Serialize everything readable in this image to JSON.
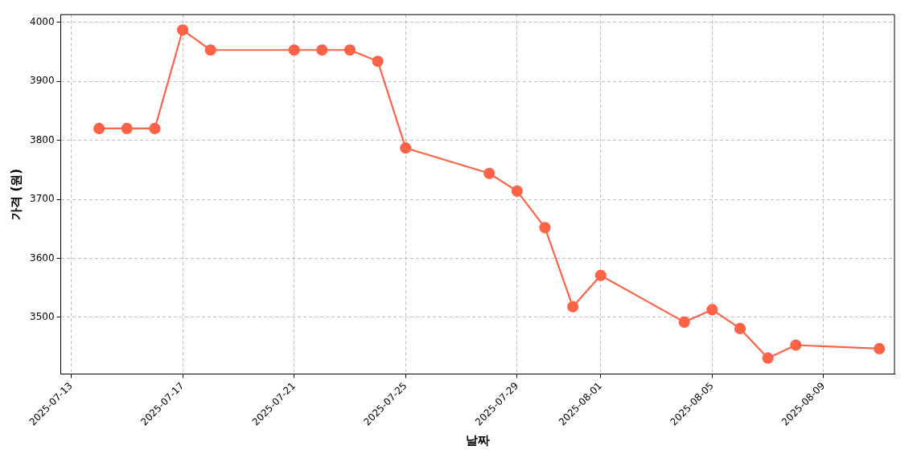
{
  "chart_data": {
    "type": "line",
    "xlabel": "날짜",
    "ylabel": "가격 (원)",
    "x": [
      "2025-07-14",
      "2025-07-15",
      "2025-07-16",
      "2025-07-17",
      "2025-07-18",
      "2025-07-21",
      "2025-07-22",
      "2025-07-23",
      "2025-07-24",
      "2025-07-25",
      "2025-07-28",
      "2025-07-29",
      "2025-07-30",
      "2025-07-31",
      "2025-08-01",
      "2025-08-04",
      "2025-08-05",
      "2025-08-06",
      "2025-08-07",
      "2025-08-08",
      "2025-08-11"
    ],
    "series": [
      {
        "color": "#ff6347",
        "values": [
          3820,
          3820,
          3820,
          3987,
          3953,
          3953,
          3953,
          3953,
          3934,
          3787,
          3744,
          3714,
          3652,
          3518,
          3571,
          3492,
          3513,
          3481,
          3431,
          3453,
          3447
        ]
      }
    ],
    "xlim": [
      "2025-07-12T15:00",
      "2025-08-11T13:00"
    ],
    "xticks": [
      "2025-07-13",
      "2025-07-17",
      "2025-07-21",
      "2025-07-25",
      "2025-07-29",
      "2025-08-01",
      "2025-08-05",
      "2025-08-09"
    ],
    "ylim": [
      3404,
      4013
    ],
    "yticks": [
      3500,
      3600,
      3700,
      3800,
      3900,
      4000
    ],
    "grid": true,
    "legend": false,
    "marker": "circle",
    "line_style": "solid"
  }
}
